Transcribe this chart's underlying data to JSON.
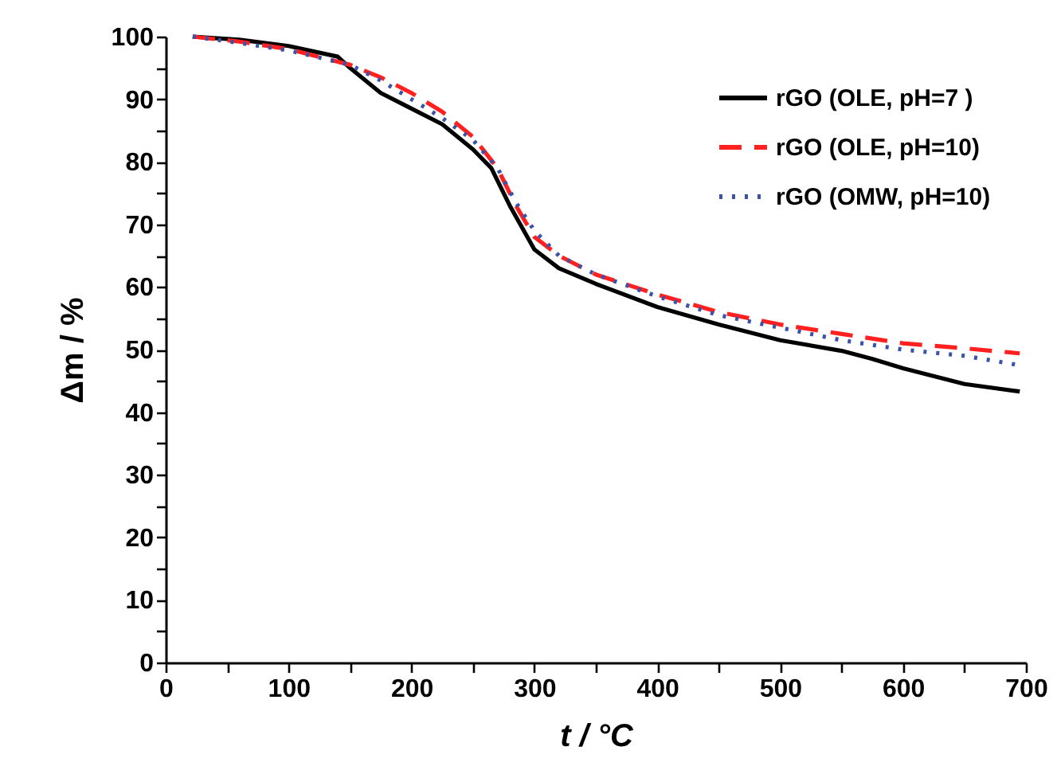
{
  "chart_data": {
    "type": "line",
    "xlabel": "t / °C",
    "ylabel": "Δm / %",
    "xlim": [
      0,
      700
    ],
    "ylim": [
      0,
      100
    ],
    "xticks": [
      0,
      {
        "value": 50,
        "label": null
      },
      100,
      {
        "value": 150,
        "label": null
      },
      200,
      {
        "value": 250,
        "label": null
      },
      300,
      {
        "value": 350,
        "label": null
      },
      400,
      {
        "value": 450,
        "label": null
      },
      500,
      {
        "value": 550,
        "label": null
      },
      600,
      {
        "value": 650,
        "label": null
      },
      700
    ],
    "yticks": [
      0,
      {
        "value": 5,
        "label": null
      },
      10,
      {
        "value": 15,
        "label": null
      },
      20,
      {
        "value": 25,
        "label": null
      },
      30,
      {
        "value": 35,
        "label": null
      },
      40,
      {
        "value": 45,
        "label": null
      },
      50,
      {
        "value": 55,
        "label": null
      },
      60,
      {
        "value": 65,
        "label": null
      },
      70,
      {
        "value": 75,
        "label": null
      },
      80,
      {
        "value": 85,
        "label": null
      },
      90,
      {
        "value": 95,
        "label": null
      },
      100
    ],
    "grid": false,
    "legend": "top right",
    "series": [
      {
        "name": "rGO (OLE, pH=7 )",
        "color": "#000000",
        "line_style": "solid",
        "x": [
          22,
          60,
          100,
          140,
          150,
          175,
          200,
          225,
          250,
          265,
          280,
          300,
          320,
          350,
          400,
          450,
          500,
          550,
          575,
          600,
          650,
          695
        ],
        "values": [
          100,
          99.5,
          98.5,
          96.8,
          95,
          91,
          88.5,
          86,
          82,
          79,
          73,
          66,
          63,
          60.5,
          56.8,
          54,
          51.5,
          49.8,
          48.5,
          47,
          44.5,
          43.3
        ]
      },
      {
        "name": "rGO (OLE, pH=10)",
        "color": "#ff2020",
        "line_style": "dashed",
        "x": [
          22,
          60,
          100,
          150,
          175,
          200,
          225,
          250,
          270,
          285,
          300,
          320,
          350,
          400,
          450,
          500,
          550,
          600,
          650,
          695
        ],
        "values": [
          100,
          99.2,
          98,
          95.5,
          93.5,
          91,
          88,
          84,
          79,
          73,
          68,
          65,
          62,
          58.8,
          56,
          54,
          52.5,
          51,
          50.2,
          49.4
        ]
      },
      {
        "name": "rGO (OMW, pH=10)",
        "color": "#3a52a8",
        "line_style": "dotted",
        "x": [
          22,
          60,
          100,
          150,
          175,
          200,
          225,
          250,
          270,
          285,
          300,
          320,
          350,
          400,
          450,
          500,
          550,
          600,
          650,
          695
        ],
        "values": [
          100,
          99,
          97.8,
          95.5,
          93,
          90,
          87,
          83.5,
          79,
          73.5,
          69,
          65,
          62,
          58.5,
          55.5,
          53.5,
          51.5,
          50,
          49,
          47.5
        ]
      }
    ]
  }
}
